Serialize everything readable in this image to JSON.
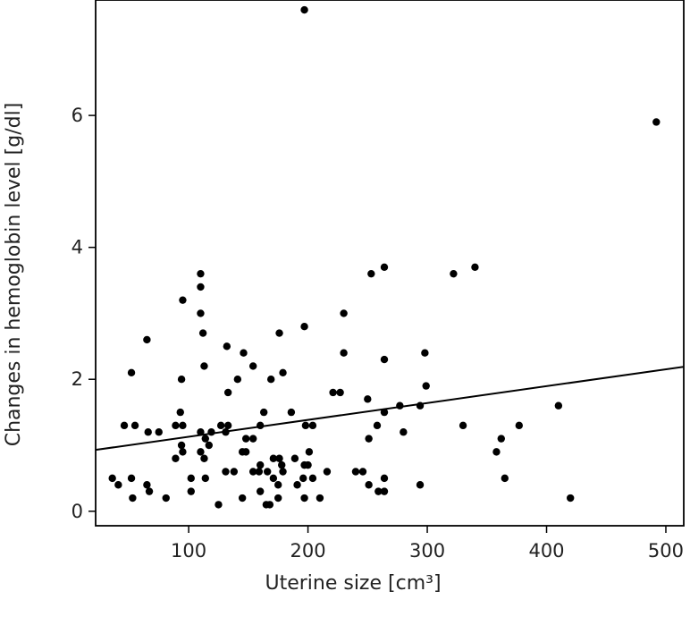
{
  "chart_data": {
    "type": "scatter",
    "title": "",
    "xlabel": "Uterine size [cm³]",
    "ylabel": "Changes in hemoglobin level [g/dl]",
    "xlim": [
      22,
      515
    ],
    "ylim": [
      -0.22,
      7.75
    ],
    "xticks": [
      100,
      200,
      300,
      400,
      500
    ],
    "yticks": [
      0,
      2,
      4,
      6
    ],
    "xtick_labels": [
      "100",
      "200",
      "300",
      "400",
      "500"
    ],
    "ytick_labels": [
      "0",
      "2",
      "4",
      "6"
    ],
    "grid": false,
    "legend": "none",
    "colors": {
      "points": "#000000",
      "line": "#000000",
      "axes": "#000000"
    },
    "points": [
      [
        197,
        7.6
      ],
      [
        492,
        5.9
      ],
      [
        110,
        3.6
      ],
      [
        110,
        3.4
      ],
      [
        95,
        3.2
      ],
      [
        110,
        3.0
      ],
      [
        112,
        2.7
      ],
      [
        113,
        2.2
      ],
      [
        65,
        2.6
      ],
      [
        52,
        2.1
      ],
      [
        94,
        2.0
      ],
      [
        264,
        3.7
      ],
      [
        253,
        3.6
      ],
      [
        322,
        3.6
      ],
      [
        340,
        3.7
      ],
      [
        230,
        3.0
      ],
      [
        197,
        2.8
      ],
      [
        176,
        2.7
      ],
      [
        132,
        2.5
      ],
      [
        146,
        2.4
      ],
      [
        230,
        2.4
      ],
      [
        264,
        2.3
      ],
      [
        298,
        2.4
      ],
      [
        154,
        2.2
      ],
      [
        179,
        2.1
      ],
      [
        141,
        2.0
      ],
      [
        169,
        2.0
      ],
      [
        133,
        1.8
      ],
      [
        221,
        1.8
      ],
      [
        227,
        1.8
      ],
      [
        299,
        1.9
      ],
      [
        250,
        1.7
      ],
      [
        277,
        1.6
      ],
      [
        294,
        1.6
      ],
      [
        410,
        1.6
      ],
      [
        93,
        1.5
      ],
      [
        163,
        1.5
      ],
      [
        186,
        1.5
      ],
      [
        264,
        1.5
      ],
      [
        46,
        1.3
      ],
      [
        55,
        1.3
      ],
      [
        89,
        1.3
      ],
      [
        95,
        1.3
      ],
      [
        127,
        1.3
      ],
      [
        133,
        1.3
      ],
      [
        160,
        1.3
      ],
      [
        198,
        1.3
      ],
      [
        204,
        1.3
      ],
      [
        258,
        1.3
      ],
      [
        330,
        1.3
      ],
      [
        377,
        1.3
      ],
      [
        66,
        1.2
      ],
      [
        75,
        1.2
      ],
      [
        110,
        1.2
      ],
      [
        119,
        1.2
      ],
      [
        131,
        1.2
      ],
      [
        280,
        1.2
      ],
      [
        114,
        1.1
      ],
      [
        148,
        1.1
      ],
      [
        154,
        1.1
      ],
      [
        251,
        1.1
      ],
      [
        362,
        1.1
      ],
      [
        94,
        1.0
      ],
      [
        117,
        1.0
      ],
      [
        95,
        0.9
      ],
      [
        110,
        0.9
      ],
      [
        145,
        0.9
      ],
      [
        148,
        0.9
      ],
      [
        201,
        0.9
      ],
      [
        358,
        0.9
      ],
      [
        89,
        0.8
      ],
      [
        113,
        0.8
      ],
      [
        171,
        0.8
      ],
      [
        176,
        0.8
      ],
      [
        189,
        0.8
      ],
      [
        160,
        0.7
      ],
      [
        178,
        0.7
      ],
      [
        197,
        0.7
      ],
      [
        200,
        0.7
      ],
      [
        131,
        0.6
      ],
      [
        138,
        0.6
      ],
      [
        154,
        0.6
      ],
      [
        159,
        0.6
      ],
      [
        166,
        0.6
      ],
      [
        179,
        0.6
      ],
      [
        216,
        0.6
      ],
      [
        240,
        0.6
      ],
      [
        246,
        0.6
      ],
      [
        36,
        0.5
      ],
      [
        52,
        0.5
      ],
      [
        102,
        0.5
      ],
      [
        114,
        0.5
      ],
      [
        171,
        0.5
      ],
      [
        196,
        0.5
      ],
      [
        204,
        0.5
      ],
      [
        264,
        0.5
      ],
      [
        365,
        0.5
      ],
      [
        41,
        0.4
      ],
      [
        65,
        0.4
      ],
      [
        175,
        0.4
      ],
      [
        191,
        0.4
      ],
      [
        251,
        0.4
      ],
      [
        294,
        0.4
      ],
      [
        67,
        0.3
      ],
      [
        102,
        0.3
      ],
      [
        160,
        0.3
      ],
      [
        259,
        0.3
      ],
      [
        264,
        0.3
      ],
      [
        53,
        0.2
      ],
      [
        81,
        0.2
      ],
      [
        145,
        0.2
      ],
      [
        175,
        0.2
      ],
      [
        197,
        0.2
      ],
      [
        210,
        0.2
      ],
      [
        420,
        0.2
      ],
      [
        125,
        0.1
      ],
      [
        165,
        0.1
      ],
      [
        168,
        0.1
      ]
    ],
    "fit_line": {
      "x": [
        22,
        515
      ],
      "y": [
        0.93,
        2.19
      ]
    }
  }
}
